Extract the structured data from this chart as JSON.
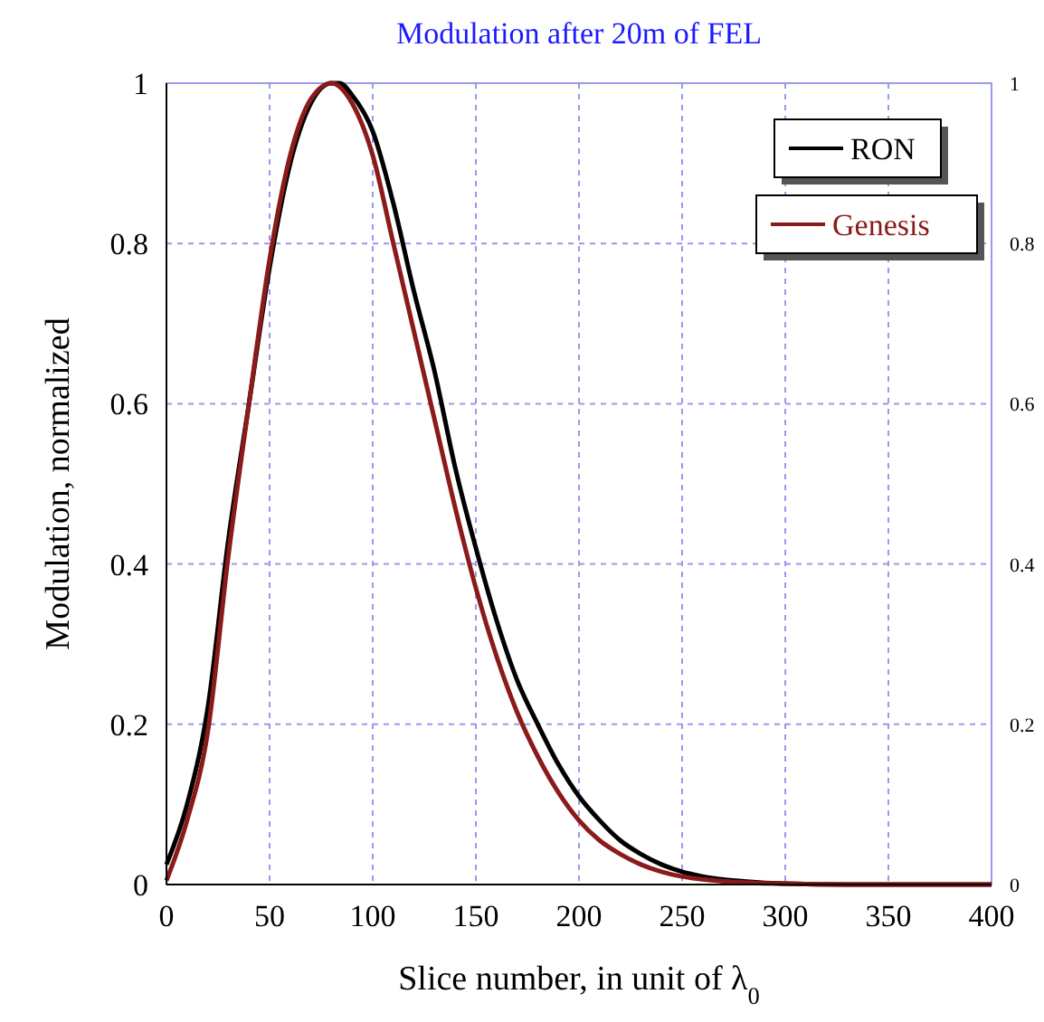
{
  "chart_data": {
    "type": "line",
    "title": "Modulation after 20m of FEL",
    "xlabel": "Slice number, in unit of λ$_{0}$",
    "ylabel": "Modulation, normalized",
    "xlim": [
      0,
      400
    ],
    "xticks": [
      0,
      50,
      100,
      150,
      200,
      250,
      300,
      350,
      400
    ],
    "ylim": [
      0,
      1
    ],
    "yticks": [
      0,
      0.2,
      0.4,
      0.6,
      0.8,
      1
    ],
    "y2lim": [
      0,
      1
    ],
    "y2ticks": [
      0,
      0.2,
      0.4,
      0.6,
      0.8,
      1
    ],
    "grid": true,
    "legend": "top right",
    "line_style": "solid",
    "marker": "none",
    "series": [
      {
        "name": "RON",
        "color": "#000000",
        "x": [
          0,
          10,
          20,
          30,
          40,
          50,
          60,
          70,
          80,
          84,
          90,
          100,
          110,
          120,
          130,
          140,
          150,
          160,
          170,
          180,
          190,
          200,
          210,
          220,
          230,
          240,
          250,
          260,
          280,
          300,
          330,
          400
        ],
        "values": [
          0.025,
          0.1,
          0.22,
          0.43,
          0.6,
          0.77,
          0.9,
          0.975,
          1.0,
          1.0,
          0.985,
          0.94,
          0.85,
          0.74,
          0.64,
          0.52,
          0.42,
          0.33,
          0.255,
          0.2,
          0.15,
          0.11,
          0.08,
          0.055,
          0.038,
          0.025,
          0.016,
          0.01,
          0.004,
          0.001,
          0,
          0
        ]
      },
      {
        "name": "Genesis",
        "color": "#8b1a1a",
        "x": [
          0,
          10,
          20,
          30,
          40,
          50,
          60,
          70,
          80,
          90,
          100,
          110,
          120,
          130,
          140,
          150,
          160,
          170,
          180,
          190,
          200,
          210,
          220,
          230,
          240,
          250,
          270,
          300,
          330,
          400
        ],
        "values": [
          0.005,
          0.08,
          0.19,
          0.41,
          0.6,
          0.78,
          0.91,
          0.98,
          1.0,
          0.975,
          0.91,
          0.8,
          0.69,
          0.58,
          0.47,
          0.37,
          0.285,
          0.215,
          0.16,
          0.115,
          0.08,
          0.055,
          0.038,
          0.025,
          0.016,
          0.01,
          0.004,
          0.001,
          0,
          0
        ]
      }
    ]
  }
}
